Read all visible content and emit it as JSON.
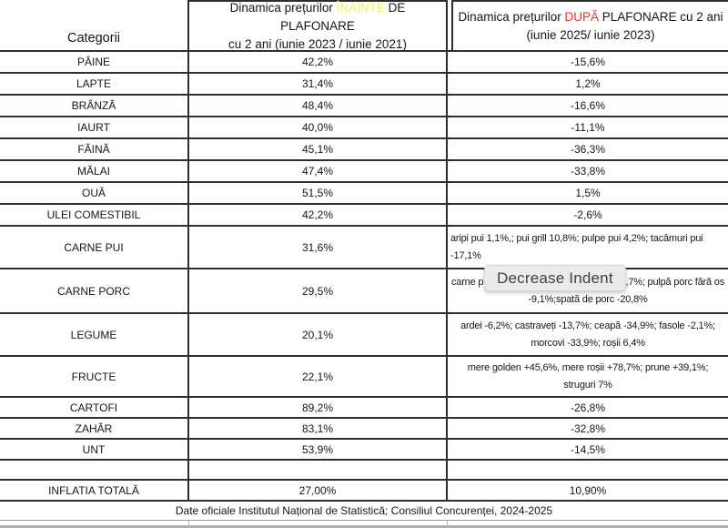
{
  "tooltip": {
    "label": "Decrease Indent"
  },
  "colors": {
    "before_highlight": "#f6f640",
    "after_highlight": "#e8352b"
  },
  "table": {
    "category_header": "Categorii",
    "before_header": {
      "text_before": "Dinamica prețurilor ",
      "highlight": "ÎNAINTE",
      "text_after": " DE PLAFONARE",
      "line2": "cu 2 ani (iunie 2023 / iunie 2021)"
    },
    "after_header": {
      "text_before": "Dinamica prețurilor ",
      "highlight": "DUPĂ",
      "text_after": " PLAFONARE cu 2 ani",
      "line2": "(iunie 2025/ iunie 2023)"
    },
    "rows": [
      {
        "category": "PÂINE",
        "before": "42,2%",
        "after": "-15,6%"
      },
      {
        "category": "LAPTE",
        "before": "31,4%",
        "after": "1,2%"
      },
      {
        "category": "BRÂNZĂ",
        "before": "48,4%",
        "after": "-16,6%"
      },
      {
        "category": "IAURT",
        "before": "40,0%",
        "after": "-11,1%"
      },
      {
        "category": "FĂINĂ",
        "before": "45,1%",
        "after": "-36,3%"
      },
      {
        "category": "MĂLAI",
        "before": "47,4%",
        "after": "-33,8%"
      },
      {
        "category": "OUĂ",
        "before": "51,5%",
        "after": "1,5%"
      },
      {
        "category": "ULEI COMESTIBIL",
        "before": "42,2%",
        "after": "-2,6%"
      },
      {
        "category": "CARNE PUI",
        "before": "31,6%",
        "after": "aripi pui 1,1%,; pui grill 10,8%; pulpe pui 4,2%; tacâmuri pui -17,1%"
      },
      {
        "category": "CARNE PORC",
        "before": "29,5%",
        "after_line1_left": "carne p",
        "after_line1_right": ",7%; pulpă porc fără os",
        "after_line2": "-9,1%;spată de porc -20,8%"
      },
      {
        "category": "LEGUME",
        "before": "20,1%",
        "after": "ardei -6,2%; castraveți -13,7%; ceapă -34,9%; fasole -2,1%; morcovi -33,9%; roșii 6,4%"
      },
      {
        "category": "FRUCTE",
        "before": "22,1%",
        "after": "mere golden +45,6%, mere roșii +78,7%; prune +39,1%; struguri 7%"
      },
      {
        "category": "CARTOFI",
        "before": "89,2%",
        "after": "-26,8%"
      },
      {
        "category": "ZAHĂR",
        "before": "83,1%",
        "after": "-32,8%"
      },
      {
        "category": "UNT",
        "before": "53,9%",
        "after": "-14,5%"
      },
      {
        "category": "",
        "before": "",
        "after": ""
      },
      {
        "category": "INFLATIA TOTALĂ",
        "before": "27,00%",
        "after": "10,90%"
      }
    ],
    "footer": "Date oficiale Institutul Național de Statistică; Consiliul Concurenței, 2024-2025"
  }
}
